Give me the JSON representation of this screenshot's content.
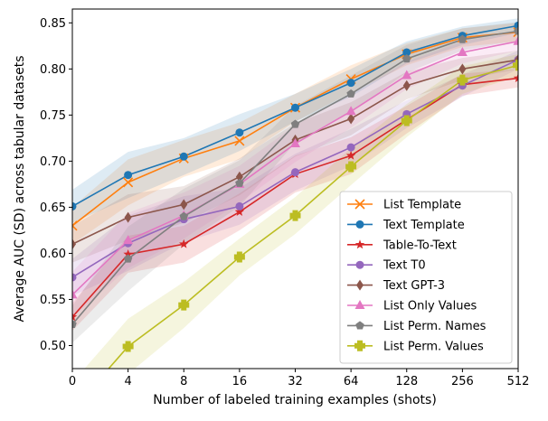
{
  "chart_data": {
    "type": "line",
    "title": "",
    "xlabel": "Number of labeled training examples (shots)",
    "ylabel": "Average AUC (SD) across tabular datasets",
    "x": [
      "0",
      "4",
      "8",
      "16",
      "32",
      "64",
      "128",
      "256",
      "512"
    ],
    "ylim": [
      0.475,
      0.865
    ],
    "yticks": [
      "0.50",
      "0.55",
      "0.60",
      "0.65",
      "0.70",
      "0.75",
      "0.80",
      "0.85"
    ],
    "legend_position": "lower-right",
    "grid": false,
    "series": [
      {
        "name": "List Template",
        "color": "#ff7f0e",
        "marker": "x",
        "values": [
          0.63,
          0.677,
          0.703,
          0.722,
          0.758,
          0.789,
          0.816,
          0.834,
          0.84
        ],
        "sd": [
          0.02,
          0.025,
          0.02,
          0.02,
          0.015,
          0.015,
          0.012,
          0.01,
          0.01
        ]
      },
      {
        "name": "Text Template",
        "color": "#1f77b4",
        "marker": "circle",
        "values": [
          0.651,
          0.685,
          0.705,
          0.731,
          0.758,
          0.785,
          0.818,
          0.836,
          0.847
        ],
        "sd": [
          0.018,
          0.025,
          0.02,
          0.02,
          0.015,
          0.015,
          0.012,
          0.01,
          0.008
        ]
      },
      {
        "name": "Table-To-Text",
        "color": "#d62728",
        "marker": "star",
        "values": [
          0.531,
          0.599,
          0.61,
          0.645,
          0.686,
          0.706,
          0.745,
          0.783,
          0.79
        ],
        "sd": [
          0.015,
          0.02,
          0.02,
          0.02,
          0.02,
          0.02,
          0.015,
          0.012,
          0.01
        ]
      },
      {
        "name": "Text T0",
        "color": "#9467bd",
        "marker": "circle",
        "values": [
          0.574,
          0.611,
          0.637,
          0.651,
          0.688,
          0.715,
          0.751,
          0.782,
          0.81
        ],
        "sd": [
          0.02,
          0.03,
          0.025,
          0.02,
          0.02,
          0.02,
          0.015,
          0.012,
          0.01
        ]
      },
      {
        "name": "Text GPT-3",
        "color": "#8c564b",
        "marker": "diamond",
        "values": [
          0.61,
          0.639,
          0.653,
          0.683,
          0.723,
          0.746,
          0.782,
          0.8,
          0.81
        ],
        "sd": [
          0.02,
          0.025,
          0.02,
          0.02,
          0.018,
          0.018,
          0.015,
          0.012,
          0.01
        ]
      },
      {
        "name": "List Only Values",
        "color": "#e377c2",
        "marker": "triangle",
        "values": [
          0.555,
          0.614,
          0.641,
          0.675,
          0.719,
          0.754,
          0.793,
          0.818,
          0.83
        ],
        "sd": [
          0.025,
          0.03,
          0.025,
          0.02,
          0.02,
          0.018,
          0.015,
          0.012,
          0.01
        ]
      },
      {
        "name": "List Perm. Names",
        "color": "#7f7f7f",
        "marker": "pentagon",
        "values": [
          0.523,
          0.594,
          0.64,
          0.676,
          0.74,
          0.773,
          0.811,
          0.832,
          0.841
        ],
        "sd": [
          0.02,
          0.035,
          0.03,
          0.025,
          0.02,
          0.02,
          0.015,
          0.012,
          0.01
        ]
      },
      {
        "name": "List Perm. Values",
        "color": "#bcbd22",
        "marker": "plus",
        "values": [
          0.43,
          0.499,
          0.544,
          0.596,
          0.641,
          0.694,
          0.744,
          0.788,
          0.804
        ],
        "sd": [
          0.03,
          0.03,
          0.025,
          0.02,
          0.02,
          0.02,
          0.018,
          0.015,
          0.012
        ]
      }
    ]
  }
}
